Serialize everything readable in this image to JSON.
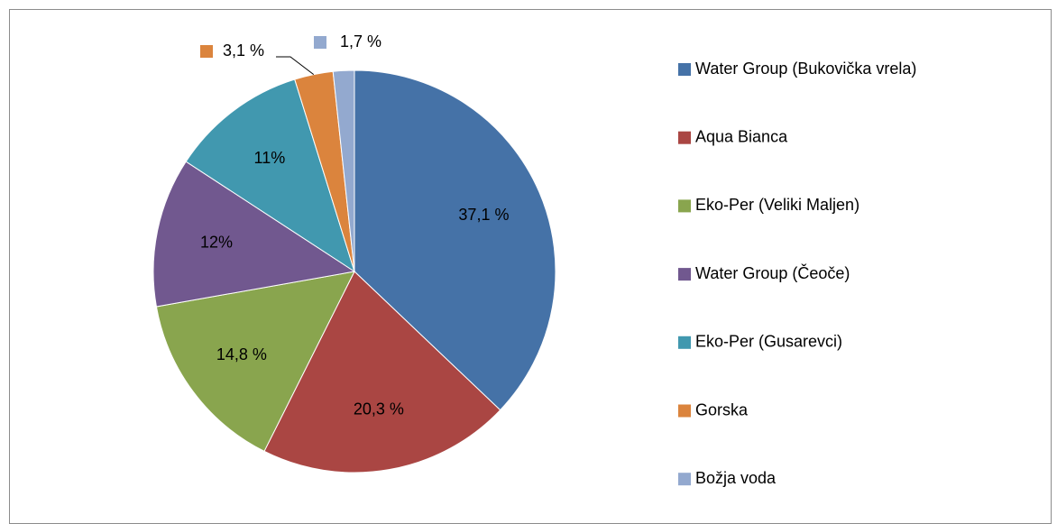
{
  "chart_data": {
    "type": "pie",
    "categories": [
      "Water Group (Bukovička vrela)",
      "Aqua Bianca",
      "Eko-Per (Veliki Maljen)",
      "Water Group (Čeoče)",
      "Eko-Per (Gusarevci)",
      "Gorska",
      "Božja voda"
    ],
    "values": [
      37.1,
      20.3,
      14.8,
      12,
      11,
      3.1,
      1.7
    ],
    "value_labels": [
      "37,1 %",
      "20,3 %",
      "14,8 %",
      "12%",
      "11%",
      "3,1 %",
      "1,7 %"
    ],
    "colors": [
      "#4572a7",
      "#aa4643",
      "#89a54e",
      "#71588f",
      "#4198af",
      "#db843d",
      "#93a9cf"
    ],
    "legend": "right"
  }
}
